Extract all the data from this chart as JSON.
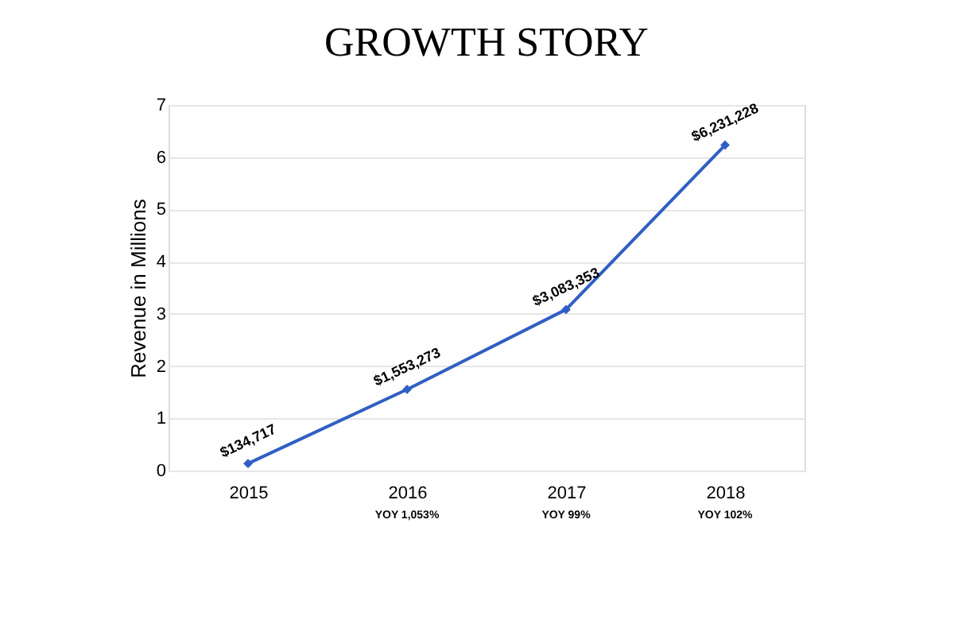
{
  "chart_data": {
    "type": "line",
    "title": "GROWTH STORY",
    "ylabel": "Revenue in Millions",
    "categories": [
      "2015",
      "2016",
      "2017",
      "2018"
    ],
    "series": [
      {
        "color": "#2f5fc4",
        "values": [
          0.134717,
          1.553273,
          3.083353,
          6.231228
        ]
      }
    ],
    "ylim": [
      0,
      7
    ],
    "yticks": [
      0,
      1,
      2,
      3,
      4,
      5,
      6,
      7
    ],
    "grid": "y",
    "marker": "diamond",
    "line_style": "solid",
    "annotations": [
      {
        "text": "$134,717",
        "x": "2015",
        "y": 0.134717
      },
      {
        "text": "$1,553,273",
        "x": "2016",
        "y": 1.553273
      },
      {
        "text": "$3,083,353",
        "x": "2017",
        "y": 3.083353
      },
      {
        "text": "$6,231,228",
        "x": "2018",
        "y": 6.231228
      },
      "YOY 1,053%",
      "YOY 99%",
      "YOY 102%"
    ]
  }
}
